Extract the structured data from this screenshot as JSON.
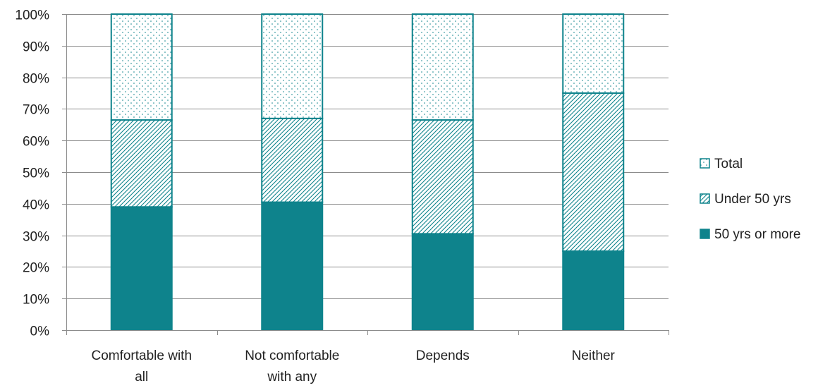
{
  "chart_data": {
    "type": "bar",
    "stacked": true,
    "categories": [
      [
        "Comfortable with",
        "all"
      ],
      [
        "Not comfortable",
        "with any"
      ],
      [
        "Depends"
      ],
      [
        "Neither"
      ]
    ],
    "series": [
      {
        "name": "50 yrs or more",
        "values": [
          39,
          40.5,
          30.5,
          25
        ],
        "pattern": "solid"
      },
      {
        "name": "Under 50 yrs",
        "values": [
          27.5,
          26.5,
          36,
          50
        ],
        "pattern": "diagonal-hatch"
      },
      {
        "name": "Total",
        "values": [
          33.5,
          33,
          33.5,
          25
        ],
        "pattern": "dots"
      }
    ],
    "legend_order": [
      "Total",
      "Under 50 yrs",
      "50 yrs or more"
    ],
    "yticks": [
      "0%",
      "10%",
      "20%",
      "30%",
      "40%",
      "50%",
      "60%",
      "70%",
      "80%",
      "90%",
      "100%"
    ],
    "ylim": [
      0,
      100
    ],
    "grid": true,
    "legend_position": "right",
    "title": "",
    "xlabel": "",
    "ylabel": "",
    "colors": {
      "bar": "#0e838c",
      "grid": "#8c8c8c",
      "axis": "#8c8c8c",
      "background": "#ffffff"
    }
  }
}
